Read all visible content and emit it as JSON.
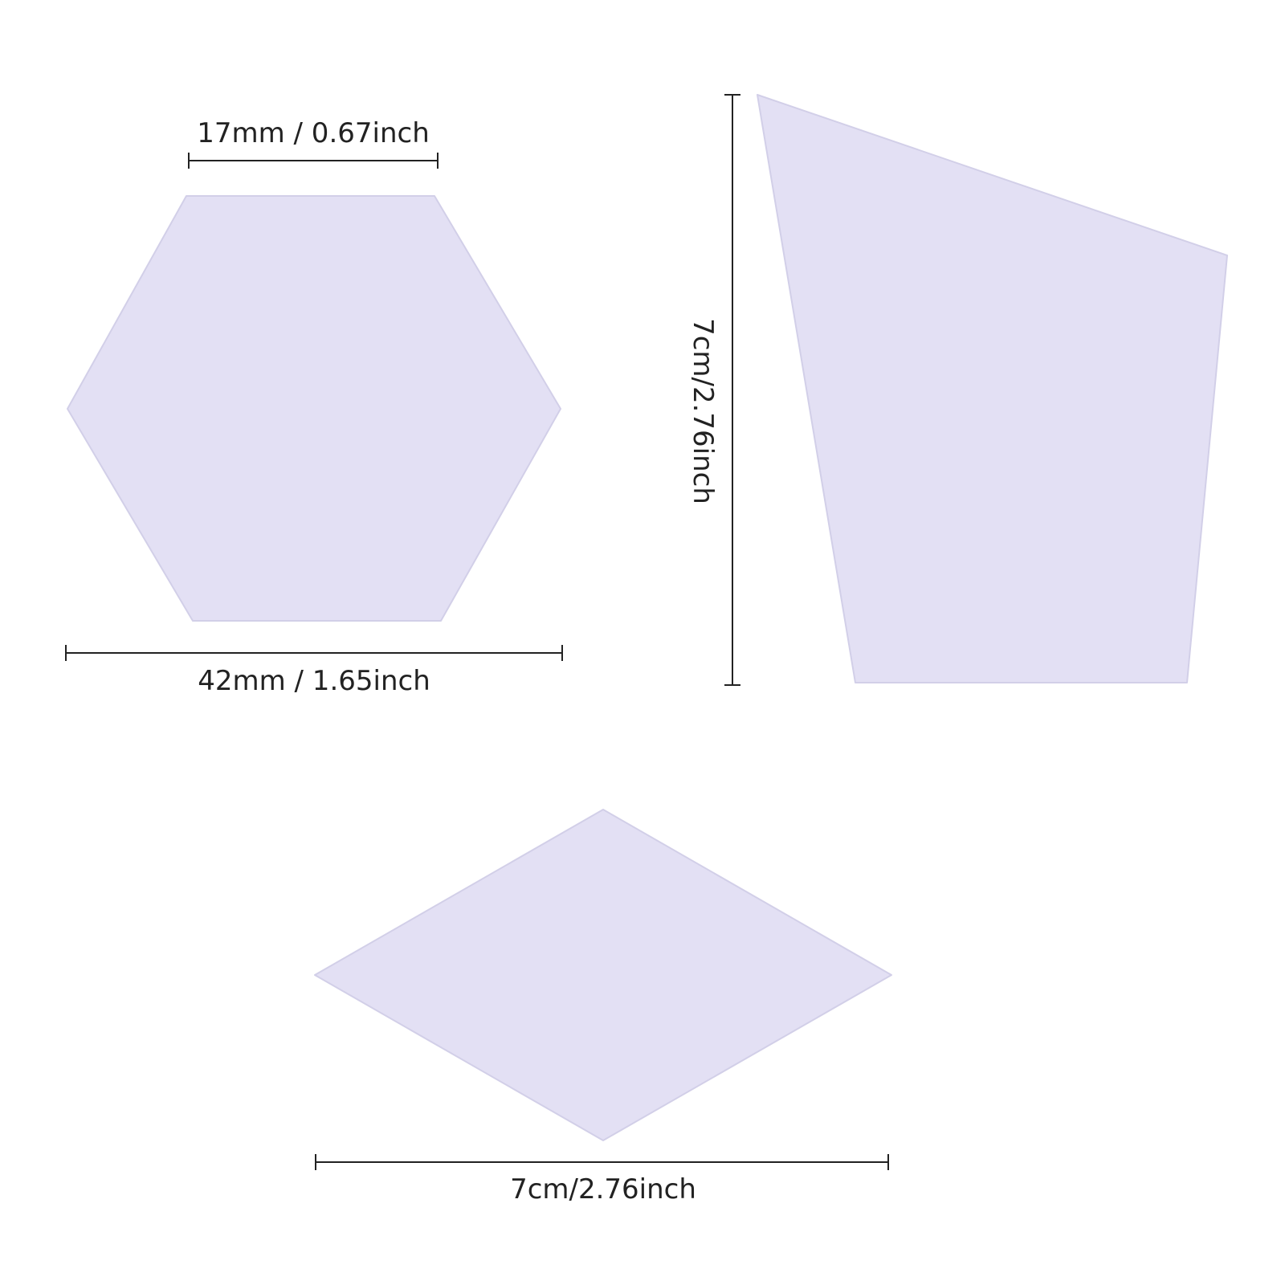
{
  "colors": {
    "background": "#ffffff",
    "shape_fill": "#e3e0f4",
    "shape_edge": "#d2cfe8",
    "dimension_line": "#222222"
  },
  "hexagon": {
    "top_edge_label": "17mm / 0.67inch",
    "width_label": "42mm / 1.65inch"
  },
  "kite": {
    "height_label": "7cm/2.76inch"
  },
  "rhombus": {
    "width_label": "7cm/2.76inch"
  }
}
